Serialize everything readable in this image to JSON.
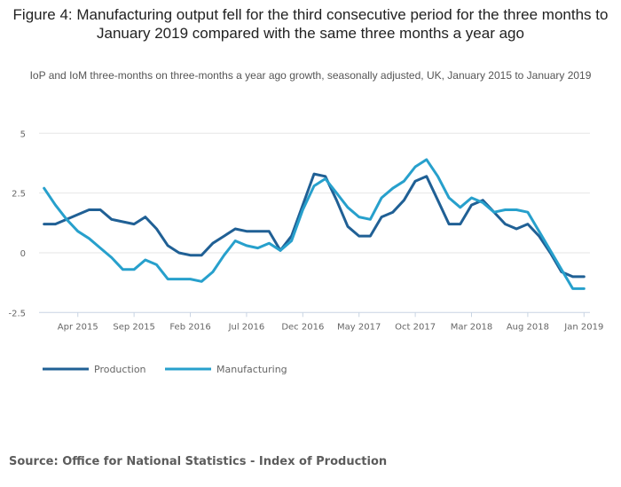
{
  "chart_data": {
    "type": "line",
    "title": "Figure 4: Manufacturing output fell for the third consecutive period for the three months to January 2019 compared with the same three months a year ago",
    "subtitle": "IoP and IoM three-months on three-months a year ago growth, seasonally adjusted, UK, January 2015 to January 2019",
    "xlabel": "",
    "ylabel": "",
    "ylim": [
      -2.5,
      5
    ],
    "yticks": [
      {
        "value": 5,
        "label": "5"
      },
      {
        "value": 2.5,
        "label": "2.5"
      },
      {
        "value": 0,
        "label": "0"
      },
      {
        "value": -2.5,
        "label": "-2.5"
      }
    ],
    "xticks": [
      {
        "index": 3,
        "label": "Apr 2015"
      },
      {
        "index": 8,
        "label": "Sep 2015"
      },
      {
        "index": 13,
        "label": "Feb 2016"
      },
      {
        "index": 18,
        "label": "Jul 2016"
      },
      {
        "index": 23,
        "label": "Dec 2016"
      },
      {
        "index": 28,
        "label": "May 2017"
      },
      {
        "index": 33,
        "label": "Oct 2017"
      },
      {
        "index": 38,
        "label": "Mar 2018"
      },
      {
        "index": 43,
        "label": "Aug 2018"
      },
      {
        "index": 48,
        "label": "Jan 2019"
      }
    ],
    "x": [
      "Jan 2015",
      "Feb 2015",
      "Mar 2015",
      "Apr 2015",
      "May 2015",
      "Jun 2015",
      "Jul 2015",
      "Aug 2015",
      "Sep 2015",
      "Oct 2015",
      "Nov 2015",
      "Dec 2015",
      "Jan 2016",
      "Feb 2016",
      "Mar 2016",
      "Apr 2016",
      "May 2016",
      "Jun 2016",
      "Jul 2016",
      "Aug 2016",
      "Sep 2016",
      "Oct 2016",
      "Nov 2016",
      "Dec 2016",
      "Jan 2017",
      "Feb 2017",
      "Mar 2017",
      "Apr 2017",
      "May 2017",
      "Jun 2017",
      "Jul 2017",
      "Aug 2017",
      "Sep 2017",
      "Oct 2017",
      "Nov 2017",
      "Dec 2017",
      "Jan 2018",
      "Feb 2018",
      "Mar 2018",
      "Apr 2018",
      "May 2018",
      "Jun 2018",
      "Jul 2018",
      "Aug 2018",
      "Sep 2018",
      "Oct 2018",
      "Nov 2018",
      "Dec 2018",
      "Jan 2019"
    ],
    "grid": true,
    "legend_position": "bottom-left",
    "series": [
      {
        "name": "Production",
        "color": "#206095",
        "values": [
          1.2,
          1.2,
          1.4,
          1.6,
          1.8,
          1.8,
          1.4,
          1.3,
          1.2,
          1.5,
          1.0,
          0.3,
          0.0,
          -0.1,
          -0.1,
          0.4,
          0.7,
          1.0,
          0.9,
          0.9,
          0.9,
          0.1,
          0.7,
          2.0,
          3.3,
          3.2,
          2.2,
          1.1,
          0.7,
          0.7,
          1.5,
          1.7,
          2.2,
          3.0,
          3.2,
          2.2,
          1.2,
          1.2,
          2.0,
          2.2,
          1.7,
          1.2,
          1.0,
          1.2,
          0.7,
          0.0,
          -0.8,
          -1.0,
          -1.0
        ]
      },
      {
        "name": "Manufacturing",
        "color": "#27a0cc",
        "values": [
          2.7,
          2.0,
          1.4,
          0.9,
          0.6,
          0.2,
          -0.2,
          -0.7,
          -0.7,
          -0.3,
          -0.5,
          -1.1,
          -1.1,
          -1.1,
          -1.2,
          -0.8,
          -0.1,
          0.5,
          0.3,
          0.2,
          0.4,
          0.1,
          0.5,
          1.8,
          2.8,
          3.1,
          2.5,
          1.9,
          1.5,
          1.4,
          2.3,
          2.7,
          3.0,
          3.6,
          3.9,
          3.2,
          2.3,
          1.9,
          2.3,
          2.1,
          1.7,
          1.8,
          1.8,
          1.7,
          0.9,
          0.1,
          -0.7,
          -1.5,
          -1.5
        ]
      }
    ],
    "source": "Source: Office for National Statistics - Index of Production"
  }
}
